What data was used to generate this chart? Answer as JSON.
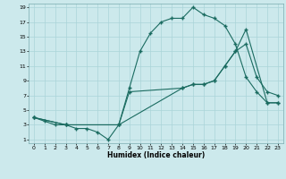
{
  "xlabel": "Humidex (Indice chaleur)",
  "bg_color": "#cce9ec",
  "line_color": "#1a6b60",
  "grid_color": "#aad4d8",
  "xlim": [
    -0.5,
    23.5
  ],
  "ylim": [
    0.5,
    19.5
  ],
  "xticks": [
    0,
    1,
    2,
    3,
    4,
    5,
    6,
    7,
    8,
    9,
    10,
    11,
    12,
    13,
    14,
    15,
    16,
    17,
    18,
    19,
    20,
    21,
    22,
    23
  ],
  "yticks": [
    1,
    3,
    5,
    7,
    9,
    11,
    13,
    15,
    17,
    19
  ],
  "line1_x": [
    0,
    1,
    2,
    3,
    4,
    5,
    6,
    7,
    8,
    9,
    10,
    11,
    12,
    13,
    14,
    15,
    16,
    17,
    18,
    19,
    20,
    21,
    22,
    23
  ],
  "line1_y": [
    4,
    3.5,
    3,
    3,
    2.5,
    2.5,
    2,
    1,
    3,
    8,
    13,
    15.5,
    17,
    17.5,
    17.5,
    19,
    18,
    17.5,
    16.5,
    14,
    9.5,
    7.5,
    6,
    6
  ],
  "line2_x": [
    0,
    3,
    8,
    9,
    14,
    15,
    16,
    17,
    18,
    19,
    20,
    21,
    22,
    23
  ],
  "line2_y": [
    4,
    3,
    3,
    7.5,
    8,
    8.5,
    8.5,
    9,
    11,
    13,
    14,
    9.5,
    7.5,
    7
  ],
  "line3_x": [
    0,
    3,
    8,
    14,
    15,
    16,
    17,
    18,
    19,
    20,
    22,
    23
  ],
  "line3_y": [
    4,
    3,
    3,
    8,
    8.5,
    8.5,
    9,
    11,
    13,
    16,
    6,
    6
  ]
}
